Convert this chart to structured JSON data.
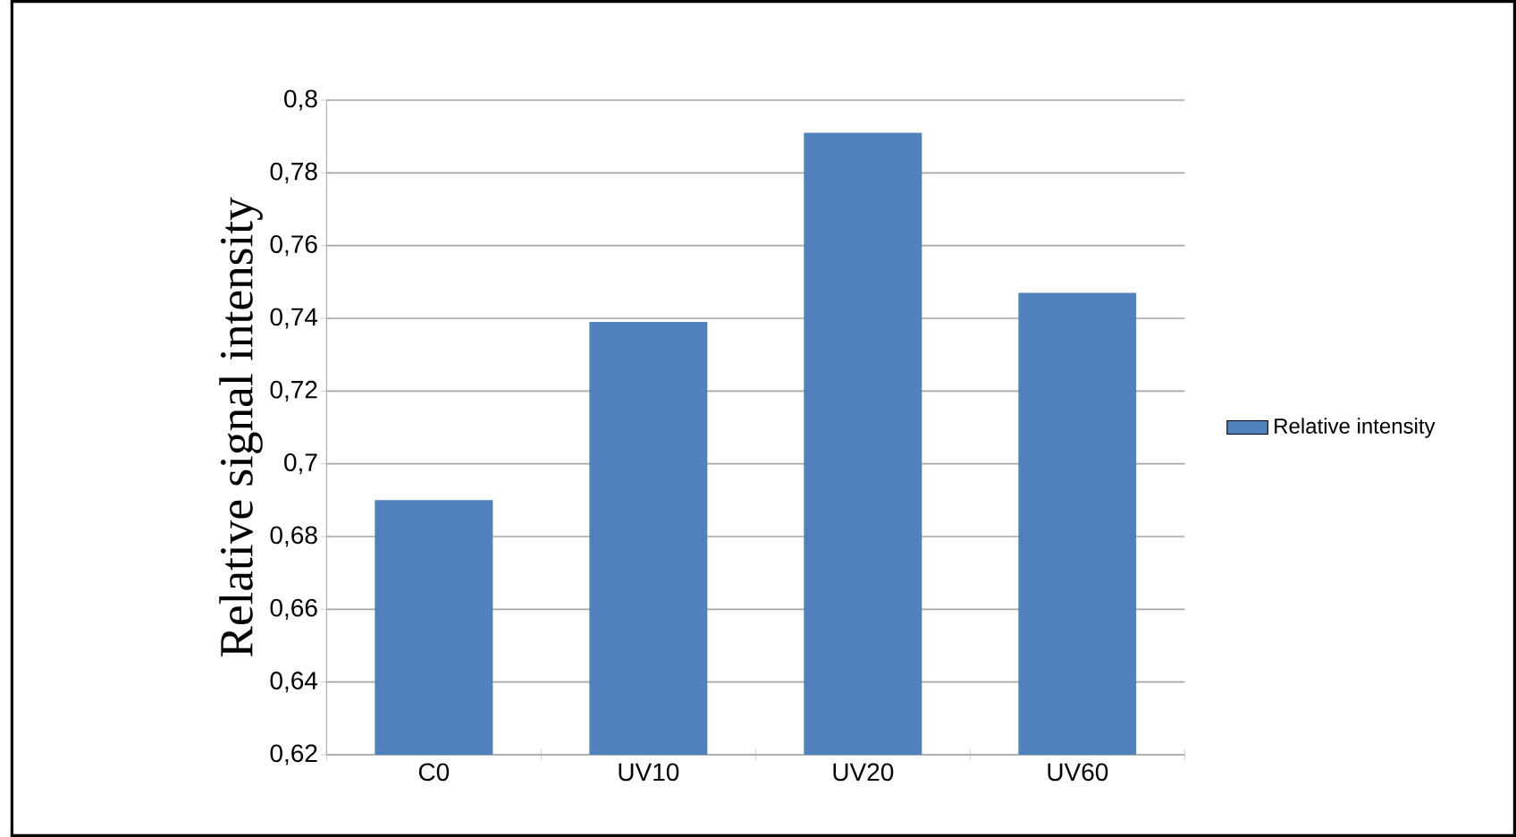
{
  "chart_data": {
    "type": "bar",
    "ylabel": "Relative signal intensity",
    "categories": [
      "C0",
      "UV10",
      "UV20",
      "UV60"
    ],
    "series": [
      {
        "name": "Relative intensity",
        "color": "#4f81bd",
        "values": [
          0.69,
          0.739,
          0.791,
          0.747
        ]
      }
    ],
    "ylim": [
      0.62,
      0.8
    ],
    "yticks": [
      {
        "value": 0.62,
        "label": "0,62"
      },
      {
        "value": 0.64,
        "label": "0,64"
      },
      {
        "value": 0.66,
        "label": "0,66"
      },
      {
        "value": 0.68,
        "label": "0,68"
      },
      {
        "value": 0.7,
        "label": "0,7"
      },
      {
        "value": 0.72,
        "label": "0,72"
      },
      {
        "value": 0.74,
        "label": "0,74"
      },
      {
        "value": 0.76,
        "label": "0,76"
      },
      {
        "value": 0.78,
        "label": "0,78"
      },
      {
        "value": 0.8,
        "label": "0,8"
      }
    ],
    "grid": "y",
    "legend": "right"
  }
}
